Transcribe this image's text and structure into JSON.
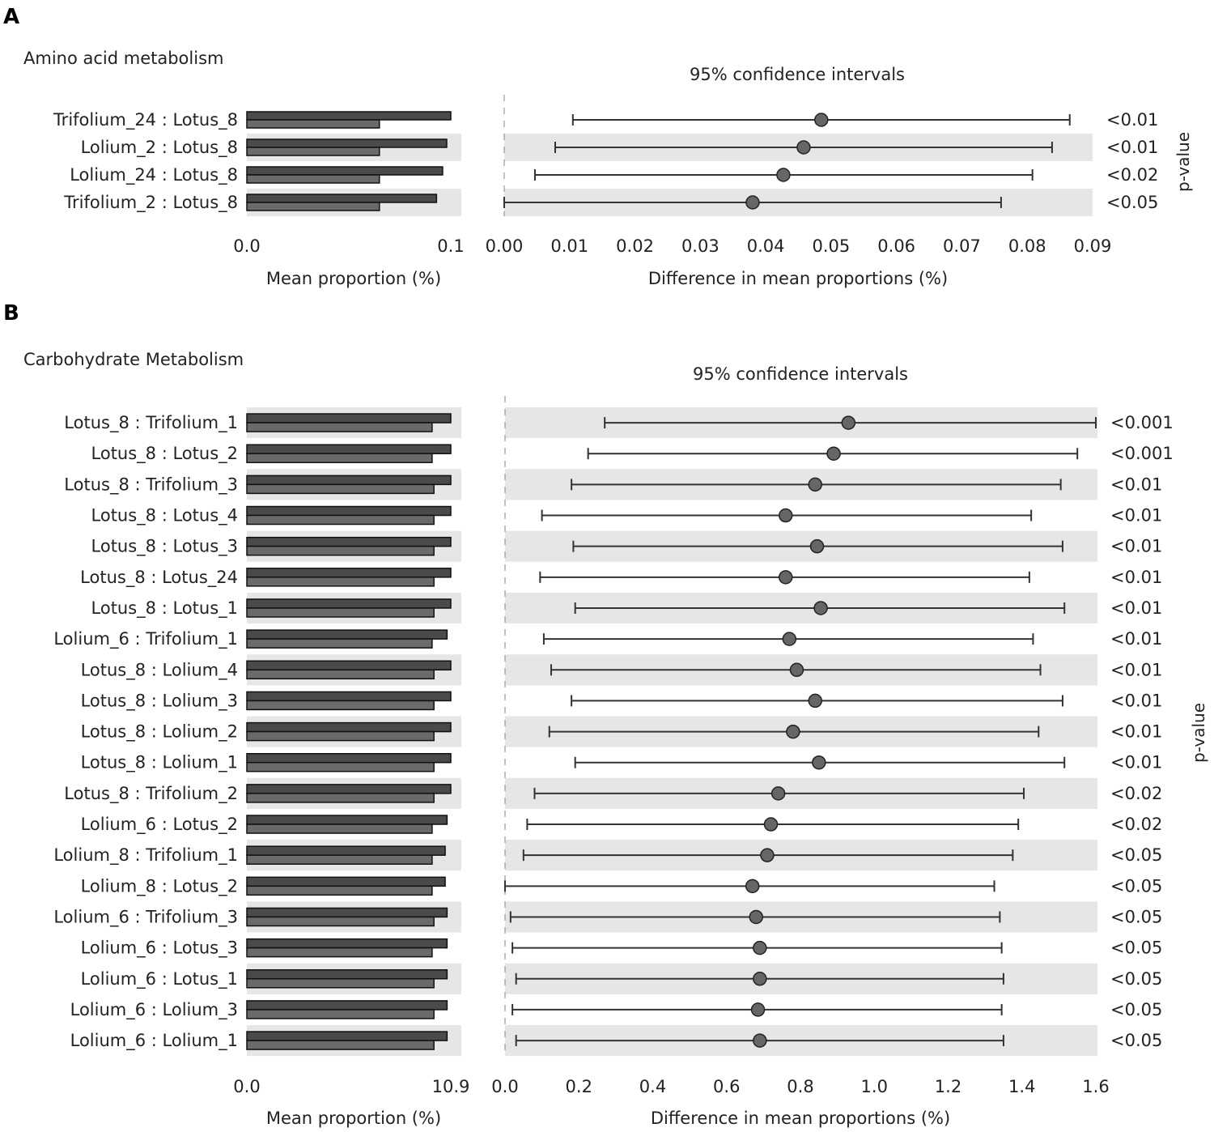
{
  "panels": [
    {
      "letter": "A",
      "title": "Amino acid metabolism",
      "ci_title": "95% confidence intervals",
      "pvalue_axis_label": "p-value",
      "colors": {
        "bar1": "#4a4a4a",
        "bar2": "#6a6a6a",
        "dot": "#666666",
        "line": "#333333",
        "stripe": "#e6e6e6"
      },
      "chart_data": {
        "type": "bar+errorbar",
        "rows": [
          "Trifolium_24 : Lotus_8",
          "Lolium_2 : Lotus_8",
          "Lolium_24 : Lotus_8",
          "Trifolium_2 : Lotus_8"
        ],
        "mean_proportion": {
          "xlabel": "Mean proportion (%)",
          "ticks": [
            "0.0",
            "0.1"
          ],
          "xlim": [
            0,
            0.1
          ],
          "series": [
            {
              "values": [
                0.1,
                0.098,
                0.096,
                0.093
              ]
            },
            {
              "values": [
                0.065,
                0.065,
                0.065,
                0.065
              ]
            }
          ]
        },
        "difference": {
          "xlabel": "Difference in mean proportions (%)",
          "ticks": [
            "0.00",
            "0.01",
            "0.02",
            "0.03",
            "0.04",
            "0.05",
            "0.06",
            "0.07",
            "0.08",
            "0.09"
          ],
          "xlim": [
            0,
            0.09
          ],
          "estimates": [
            0.0485,
            0.0458,
            0.0427,
            0.038
          ],
          "ci_low": [
            0.0105,
            0.0078,
            0.0047,
            0.0
          ],
          "ci_high": [
            0.0865,
            0.0838,
            0.0808,
            0.076
          ]
        },
        "p_values": [
          "<0.01",
          "<0.01",
          "<0.02",
          "<0.05"
        ]
      }
    },
    {
      "letter": "B",
      "title": "Carbohydrate Metabolism",
      "ci_title": "95% confidence intervals",
      "pvalue_axis_label": "p-value",
      "colors": {
        "bar1": "#4a4a4a",
        "bar2": "#6a6a6a",
        "dot": "#666666",
        "line": "#333333",
        "stripe": "#e6e6e6"
      },
      "chart_data": {
        "type": "bar+errorbar",
        "rows": [
          "Lotus_8 : Trifolium_1",
          "Lotus_8 : Lotus_2",
          "Lotus_8 : Trifolium_3",
          "Lotus_8 : Lotus_4",
          "Lotus_8 : Lotus_3",
          "Lotus_8 : Lotus_24",
          "Lotus_8 : Lotus_1",
          "Lolium_6 : Trifolium_1",
          "Lotus_8 : Lolium_4",
          "Lotus_8 : Lolium_3",
          "Lotus_8 : Lolium_2",
          "Lotus_8 : Lolium_1",
          "Lotus_8 : Trifolium_2",
          "Lolium_6 : Lotus_2",
          "Lolium_8 : Trifolium_1",
          "Lolium_8 : Lotus_2",
          "Lolium_6 : Trifolium_3",
          "Lolium_6 : Lotus_3",
          "Lolium_6 : Lotus_1",
          "Lolium_6 : Lolium_3",
          "Lolium_6 : Lolium_1"
        ],
        "mean_proportion": {
          "xlabel": "Mean proportion (%)",
          "ticks": [
            "0.0",
            "10.9"
          ],
          "xlim": [
            0,
            10.9
          ],
          "series": [
            {
              "values": [
                10.9,
                10.9,
                10.9,
                10.9,
                10.9,
                10.9,
                10.9,
                10.7,
                10.9,
                10.9,
                10.9,
                10.9,
                10.9,
                10.7,
                10.6,
                10.6,
                10.7,
                10.7,
                10.7,
                10.7,
                10.7
              ]
            },
            {
              "values": [
                9.9,
                9.9,
                10.0,
                10.0,
                10.0,
                10.0,
                10.0,
                9.9,
                10.0,
                10.0,
                10.0,
                10.0,
                10.0,
                9.9,
                9.9,
                9.9,
                10.0,
                9.9,
                10.0,
                10.0,
                10.0
              ]
            }
          ]
        },
        "difference": {
          "xlabel": "Difference in mean proportions (%)",
          "ticks": [
            "0.0",
            "0.2",
            "0.4",
            "0.6",
            "0.8",
            "1.0",
            "1.2",
            "1.4",
            "1.6"
          ],
          "xlim": [
            0,
            1.6
          ],
          "estimates": [
            0.93,
            0.89,
            0.84,
            0.76,
            0.845,
            0.76,
            0.855,
            0.77,
            0.79,
            0.84,
            0.78,
            0.85,
            0.74,
            0.72,
            0.71,
            0.67,
            0.68,
            0.69,
            0.69,
            0.685,
            0.69
          ],
          "ci_low": [
            0.27,
            0.225,
            0.18,
            0.1,
            0.185,
            0.095,
            0.19,
            0.105,
            0.125,
            0.18,
            0.12,
            0.19,
            0.08,
            0.06,
            0.05,
            0.0,
            0.015,
            0.02,
            0.03,
            0.02,
            0.03
          ],
          "ci_high": [
            1.6,
            1.55,
            1.505,
            1.425,
            1.51,
            1.42,
            1.515,
            1.43,
            1.45,
            1.51,
            1.445,
            1.515,
            1.405,
            1.39,
            1.375,
            1.325,
            1.34,
            1.345,
            1.35,
            1.345,
            1.35
          ]
        },
        "p_values": [
          "<0.001",
          "<0.001",
          "<0.01",
          "<0.01",
          "<0.01",
          "<0.01",
          "<0.01",
          "<0.01",
          "<0.01",
          "<0.01",
          "<0.01",
          "<0.01",
          "<0.02",
          "<0.02",
          "<0.05",
          "<0.05",
          "<0.05",
          "<0.05",
          "<0.05",
          "<0.05",
          "<0.05"
        ]
      }
    }
  ]
}
